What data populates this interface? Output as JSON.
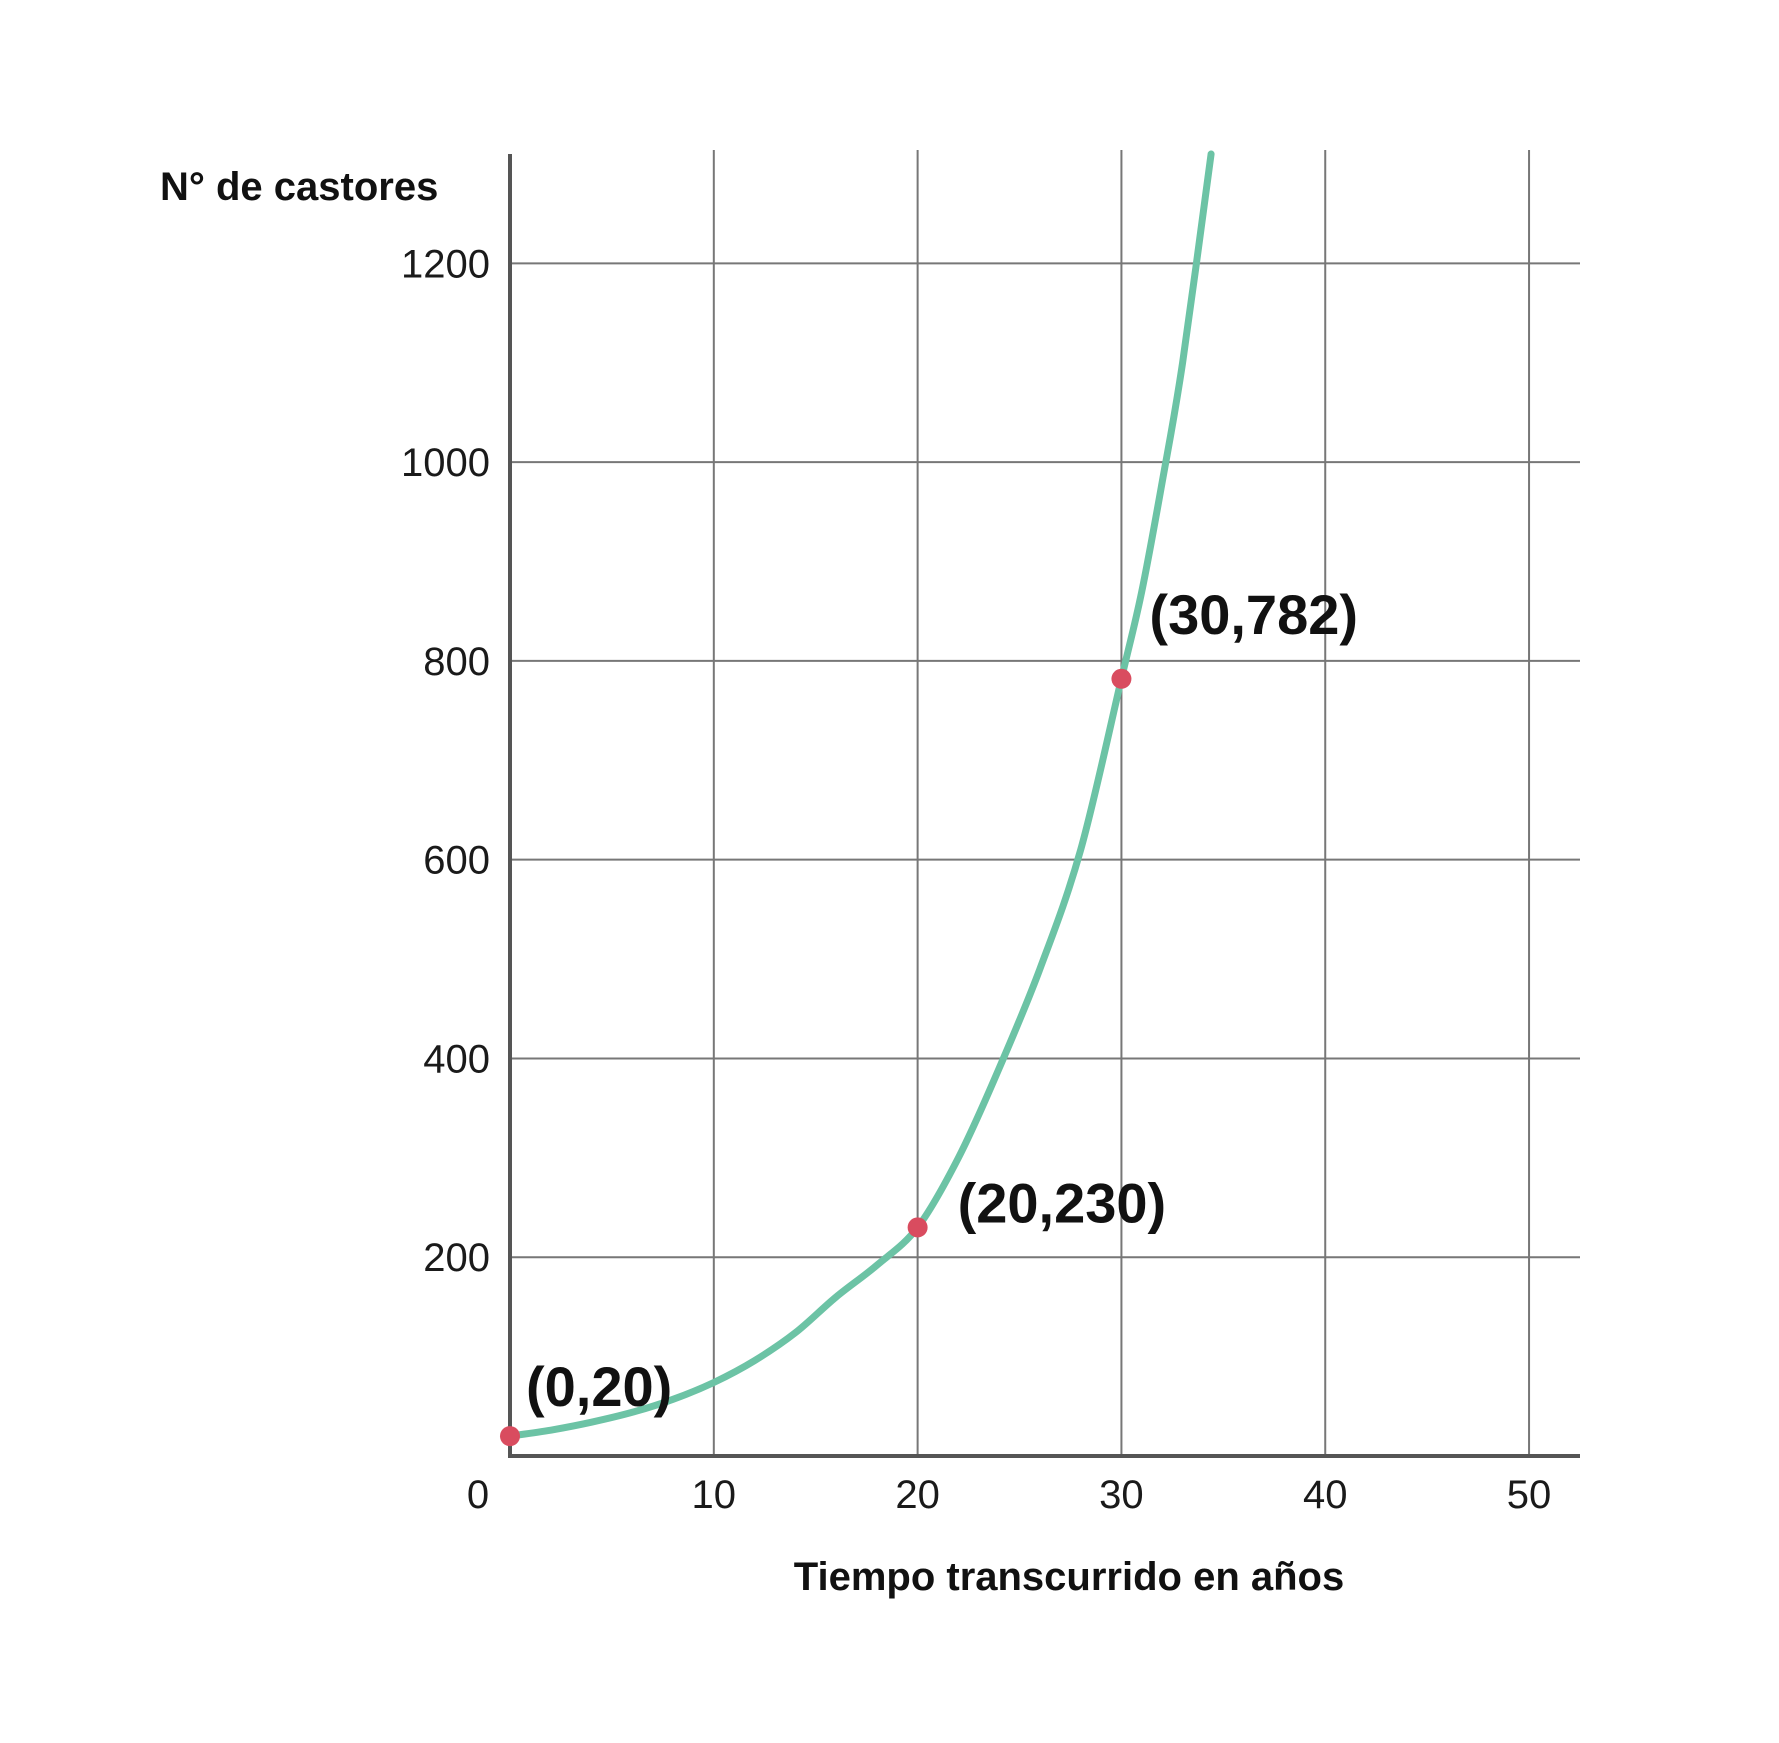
{
  "chart_data": {
    "type": "line",
    "title": "",
    "xlabel": "Tiempo transcurrido en años",
    "ylabel": "N° de castores",
    "xlim": [
      0,
      52.5
    ],
    "ylim": [
      0,
      1310
    ],
    "x_ticks": [
      0,
      10,
      20,
      30,
      40,
      50
    ],
    "y_ticks": [
      200,
      400,
      600,
      800,
      1000,
      1200
    ],
    "grid": true,
    "colors": {
      "curve": "#6cc3a5",
      "points": "#d94c5f",
      "grid": "#777777",
      "axis": "#555555"
    },
    "series": [
      {
        "x": [
          0,
          2,
          4,
          6,
          8,
          10,
          12,
          14,
          16,
          18,
          20,
          22,
          24,
          26,
          28,
          30,
          31,
          32,
          33,
          34.4
        ],
        "y": [
          20,
          26,
          34,
          44,
          57,
          74,
          96,
          124,
          160,
          192,
          230,
          300,
          390,
          490,
          610,
          782,
          870,
          980,
          1100,
          1310
        ]
      }
    ],
    "points": [
      {
        "x": 0,
        "y": 20,
        "label": "(0,20)"
      },
      {
        "x": 20,
        "y": 230,
        "label": "(20,230)"
      },
      {
        "x": 30,
        "y": 782,
        "label": "(30,782)"
      }
    ]
  }
}
